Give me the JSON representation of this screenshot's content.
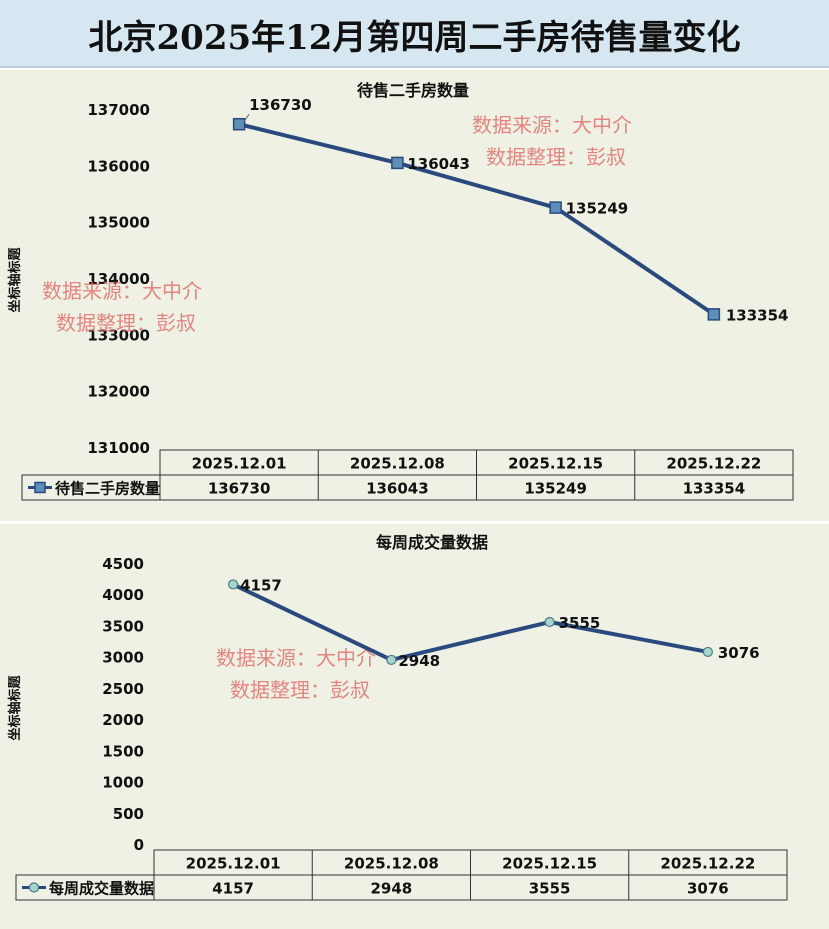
{
  "page_title": "北京2025年12月第四周二手房待售量变化",
  "watermark": {
    "line1": "数据来源：大中介",
    "line2": "数据整理：彭叔"
  },
  "colors": {
    "line": "#2a4a7f",
    "marker1": "#5d8fb8",
    "marker2": "#a9d5cf",
    "panel_bg": "#eef1e3",
    "title_bg": "#d6e7f2",
    "watermark": "#e06060"
  },
  "chart_data": [
    {
      "type": "line",
      "title": "待售二手房数量",
      "ylabel": "坐标轴标题",
      "categories": [
        "2025.12.01",
        "2025.12.08",
        "2025.12.15",
        "2025.12.22"
      ],
      "series": [
        {
          "name": "待售二手房数量",
          "values": [
            136730,
            136043,
            135249,
            133354
          ]
        }
      ],
      "ylim": [
        131000,
        137000
      ],
      "yticks": [
        137000,
        136000,
        135000,
        134000,
        133000,
        132000,
        131000
      ],
      "data_labels": true,
      "grid": false,
      "legend": "data-table"
    },
    {
      "type": "line",
      "title": "每周成交量数据",
      "ylabel": "坐标轴标题",
      "categories": [
        "2025.12.01",
        "2025.12.08",
        "2025.12.15",
        "2025.12.22"
      ],
      "series": [
        {
          "name": "每周成交量数据",
          "values": [
            4157,
            2948,
            3555,
            3076
          ]
        }
      ],
      "ylim": [
        0,
        4500
      ],
      "yticks": [
        4500,
        4000,
        3500,
        3000,
        2500,
        2000,
        1500,
        1000,
        500,
        0
      ],
      "data_labels": true,
      "grid": false,
      "legend": "data-table"
    }
  ]
}
